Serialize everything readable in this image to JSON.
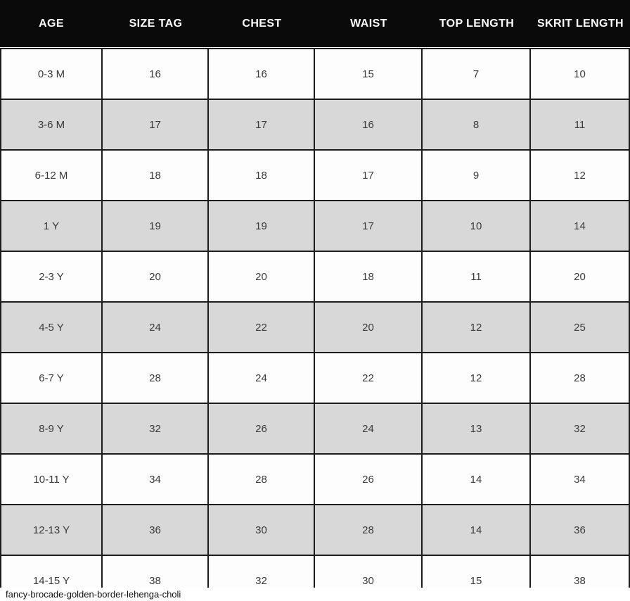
{
  "chart_data": {
    "type": "table",
    "columns": [
      "AGE",
      "SIZE TAG",
      "CHEST",
      "WAIST",
      "TOP LENGTH",
      "SKRIT LENGTH"
    ],
    "rows": [
      [
        "0-3 M",
        "16",
        "16",
        "15",
        "7",
        "10"
      ],
      [
        "3-6 M",
        "17",
        "17",
        "16",
        "8",
        "11"
      ],
      [
        "6-12 M",
        "18",
        "18",
        "17",
        "9",
        "12"
      ],
      [
        "1 Y",
        "19",
        "19",
        "17",
        "10",
        "14"
      ],
      [
        "2-3 Y",
        "20",
        "20",
        "18",
        "11",
        "20"
      ],
      [
        "4-5 Y",
        "24",
        "22",
        "20",
        "12",
        "25"
      ],
      [
        "6-7 Y",
        "28",
        "24",
        "22",
        "12",
        "28"
      ],
      [
        "8-9 Y",
        "32",
        "26",
        "24",
        "13",
        "32"
      ],
      [
        "10-11 Y",
        "34",
        "28",
        "26",
        "14",
        "34"
      ],
      [
        "12-13 Y",
        "36",
        "30",
        "28",
        "14",
        "36"
      ],
      [
        "14-15 Y",
        "38",
        "32",
        "30",
        "15",
        "38"
      ]
    ],
    "title": "",
    "layout_hints": {
      "header_style": "black-bar-white-text",
      "row_striping": "white-gray-alternating",
      "grid": "on"
    }
  },
  "caption": "fancy-brocade-golden-border-lehenga-choli",
  "colors": {
    "header_bg": "#0a0a0a",
    "header_text": "#ffffff",
    "row_bg": "#fdfdfd",
    "row_alt_bg": "#d8d8d8",
    "border": "#1c1c1c",
    "cell_text": "#3a3a3a"
  }
}
